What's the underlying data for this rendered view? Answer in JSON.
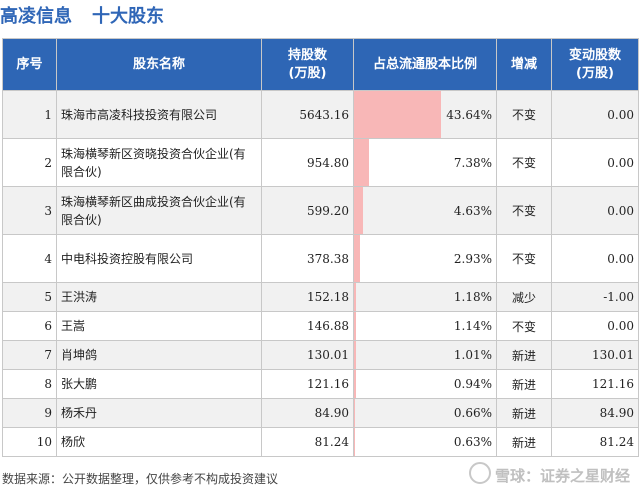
{
  "title": {
    "company": "高凌信息",
    "section": "十大股东"
  },
  "columns": {
    "index": "序号",
    "name": "股东名称",
    "shares": "持股数\n(万股)",
    "ratio": "占总流通股本比例",
    "change": "增减",
    "delta": "变动股数\n(万股)"
  },
  "rows": [
    {
      "index": "1",
      "name": "珠海市高凌科技投资有限公司",
      "shares": "5643.16",
      "ratio": "43.64%",
      "ratio_value": 43.64,
      "change": "不变",
      "change_type": "flat",
      "delta": "0.00"
    },
    {
      "index": "2",
      "name": "珠海横琴新区资晓投资合伙企业(有限合伙)",
      "shares": "954.80",
      "ratio": "7.38%",
      "ratio_value": 7.38,
      "change": "不变",
      "change_type": "flat",
      "delta": "0.00"
    },
    {
      "index": "3",
      "name": "珠海横琴新区曲成投资合伙企业(有限合伙)",
      "shares": "599.20",
      "ratio": "4.63%",
      "ratio_value": 4.63,
      "change": "不变",
      "change_type": "flat",
      "delta": "0.00"
    },
    {
      "index": "4",
      "name": "中电科投资控股有限公司",
      "shares": "378.38",
      "ratio": "2.93%",
      "ratio_value": 2.93,
      "change": "不变",
      "change_type": "flat",
      "delta": "0.00"
    },
    {
      "index": "5",
      "name": "王洪涛",
      "shares": "152.18",
      "ratio": "1.18%",
      "ratio_value": 1.18,
      "change": "减少",
      "change_type": "down",
      "delta": "-1.00"
    },
    {
      "index": "6",
      "name": "王嵩",
      "shares": "146.88",
      "ratio": "1.14%",
      "ratio_value": 1.14,
      "change": "不变",
      "change_type": "flat",
      "delta": "0.00"
    },
    {
      "index": "7",
      "name": "肖坤鸽",
      "shares": "130.01",
      "ratio": "1.01%",
      "ratio_value": 1.01,
      "change": "新进",
      "change_type": "up",
      "delta": "130.01"
    },
    {
      "index": "8",
      "name": "张大鹏",
      "shares": "121.16",
      "ratio": "0.94%",
      "ratio_value": 0.94,
      "change": "新进",
      "change_type": "up",
      "delta": "121.16"
    },
    {
      "index": "9",
      "name": "杨禾丹",
      "shares": "84.90",
      "ratio": "0.66%",
      "ratio_value": 0.66,
      "change": "新进",
      "change_type": "up",
      "delta": "84.90"
    },
    {
      "index": "10",
      "name": "杨欣",
      "shares": "81.24",
      "ratio": "0.63%",
      "ratio_value": 0.63,
      "change": "新进",
      "change_type": "up",
      "delta": "81.24"
    }
  ],
  "footer": {
    "source": "数据来源：公开数据整理，仅供参考不构成投资建议"
  },
  "brand": {
    "text": "雪球：证券之星财经"
  },
  "watermark": "证券之星",
  "colors": {
    "header_bg": "#2e66b5",
    "title": "#2f66b7",
    "bar": "#f8b7b7",
    "up": "#d9261c",
    "down": "#1a9a30"
  }
}
